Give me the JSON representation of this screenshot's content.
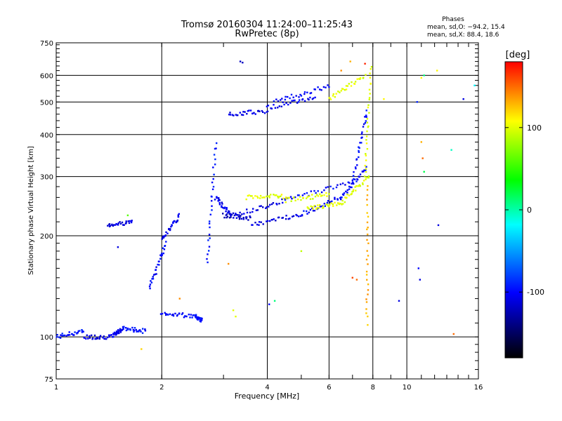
{
  "chart_data": {
    "type": "scatter",
    "title": "Tromsø 20160304 11:24:00–11:25:43",
    "subtitle": "RwPretec (8p)",
    "xlabel": "Frequency [MHz]",
    "ylabel": "Stationary phase Virtual Height [km]",
    "x_scale": "log",
    "y_scale": "log",
    "xlim": [
      1,
      16
    ],
    "ylim": [
      75,
      750
    ],
    "x_ticks": [
      1,
      2,
      4,
      6,
      8,
      10,
      16
    ],
    "y_ticks": [
      75,
      100,
      200,
      300,
      400,
      500,
      600,
      750
    ],
    "grid": true,
    "phase_info": {
      "heading": "Phases",
      "line1": "mean, sd,O: −94.2, 15.4",
      "line2": "mean, sd,X:  88.4, 18.6"
    },
    "colorbar": {
      "label": "[deg]",
      "ticks": [
        100,
        0,
        -100
      ],
      "range": [
        -180,
        180
      ]
    },
    "color_stops": [
      "#ff0000",
      "#ffff00",
      "#00ff00",
      "#00ffff",
      "#0000ff",
      "#000000"
    ],
    "traces": [
      {
        "x": [
          1.0,
          1.2
        ],
        "y": [
          100,
          104
        ],
        "phase": -95
      },
      {
        "x": [
          1.2,
          1.45
        ],
        "y": [
          100,
          100
        ],
        "phase": -110
      },
      {
        "x": [
          1.45,
          1.55
        ],
        "y": [
          101,
          106
        ],
        "phase": -105
      },
      {
        "x": [
          1.55,
          1.8
        ],
        "y": [
          106,
          104
        ],
        "phase": -95
      },
      {
        "x": [
          1.4,
          1.65
        ],
        "y": [
          215,
          220
        ],
        "phase": -110
      },
      {
        "x": [
          1.85,
          2.05
        ],
        "y": [
          140,
          190
        ],
        "phase": -100
      },
      {
        "x": [
          2.0,
          2.25
        ],
        "y": [
          195,
          230
        ],
        "phase": -105
      },
      {
        "x": [
          2.0,
          2.5
        ],
        "y": [
          118,
          115
        ],
        "phase": -100
      },
      {
        "x": [
          2.5,
          2.6
        ],
        "y": [
          115,
          112
        ],
        "phase": -95
      },
      {
        "x": [
          2.7,
          2.85
        ],
        "y": [
          165,
          380
        ],
        "phase": -95
      },
      {
        "x": [
          2.85,
          3.15
        ],
        "y": [
          260,
          230
        ],
        "phase": -105
      },
      {
        "x": [
          3.0,
          3.6
        ],
        "y": [
          230,
          225
        ],
        "phase": -120
      },
      {
        "x": [
          3.6,
          5.0
        ],
        "y": [
          215,
          232
        ],
        "phase": -110
      },
      {
        "x": [
          5.0,
          6.5
        ],
        "y": [
          232,
          260
        ],
        "phase": -100
      },
      {
        "x": [
          6.5,
          7.7
        ],
        "y": [
          260,
          320
        ],
        "phase": -100
      },
      {
        "x": [
          3.2,
          4.5
        ],
        "y": [
          230,
          255
        ],
        "phase": -110
      },
      {
        "x": [
          4.5,
          7.0
        ],
        "y": [
          255,
          290
        ],
        "phase": -100
      },
      {
        "x": [
          7.0,
          7.7
        ],
        "y": [
          290,
          470
        ],
        "phase": -100
      },
      {
        "x": [
          3.1,
          4.0
        ],
        "y": [
          460,
          470
        ],
        "phase": -110
      },
      {
        "x": [
          4.0,
          5.5
        ],
        "y": [
          480,
          520
        ],
        "phase": -105
      },
      {
        "x": [
          4.2,
          6.0
        ],
        "y": [
          500,
          560
        ],
        "phase": -100
      },
      {
        "x": [
          3.5,
          4.5
        ],
        "y": [
          260,
          262
        ],
        "phase": 100
      },
      {
        "x": [
          4.5,
          6.0
        ],
        "y": [
          255,
          265
        ],
        "phase": 100
      },
      {
        "x": [
          5.2,
          6.5
        ],
        "y": [
          240,
          250
        ],
        "phase": 100
      },
      {
        "x": [
          6.5,
          7.8
        ],
        "y": [
          250,
          300
        ],
        "phase": 100
      },
      {
        "x": [
          7.6,
          7.9
        ],
        "y": [
          300,
          640
        ],
        "phase": 100
      },
      {
        "x": [
          6.0,
          7.6
        ],
        "y": [
          510,
          600
        ],
        "phase": 100
      },
      {
        "x": [
          7.7,
          7.75
        ],
        "y": [
          110,
          280
        ],
        "phase": 130
      }
    ],
    "scatter": [
      {
        "x": 3.35,
        "y": 660,
        "phase": -120
      },
      {
        "x": 3.4,
        "y": 655,
        "phase": -120
      },
      {
        "x": 3.2,
        "y": 120,
        "phase": 100
      },
      {
        "x": 3.25,
        "y": 115,
        "phase": 100
      },
      {
        "x": 4.05,
        "y": 125,
        "phase": -100
      },
      {
        "x": 4.2,
        "y": 128,
        "phase": 10
      },
      {
        "x": 3.1,
        "y": 165,
        "phase": 140
      },
      {
        "x": 1.75,
        "y": 92,
        "phase": 120
      },
      {
        "x": 1.6,
        "y": 230,
        "phase": 60
      },
      {
        "x": 1.5,
        "y": 185,
        "phase": -110
      },
      {
        "x": 2.25,
        "y": 130,
        "phase": 140
      },
      {
        "x": 10.8,
        "y": 160,
        "phase": -100
      },
      {
        "x": 10.9,
        "y": 148,
        "phase": -110
      },
      {
        "x": 11.0,
        "y": 590,
        "phase": 110
      },
      {
        "x": 11.2,
        "y": 600,
        "phase": 10
      },
      {
        "x": 10.7,
        "y": 500,
        "phase": -90
      },
      {
        "x": 11.0,
        "y": 380,
        "phase": 130
      },
      {
        "x": 11.1,
        "y": 340,
        "phase": 150
      },
      {
        "x": 11.2,
        "y": 310,
        "phase": 20
      },
      {
        "x": 12.2,
        "y": 620,
        "phase": 110
      },
      {
        "x": 13.4,
        "y": 360,
        "phase": -5
      },
      {
        "x": 14.5,
        "y": 510,
        "phase": -110
      },
      {
        "x": 12.3,
        "y": 215,
        "phase": -110
      },
      {
        "x": 13.6,
        "y": 102,
        "phase": 150
      },
      {
        "x": 9.5,
        "y": 128,
        "phase": -110
      },
      {
        "x": 8.6,
        "y": 510,
        "phase": 110
      },
      {
        "x": 7.0,
        "y": 150,
        "phase": 160
      },
      {
        "x": 7.2,
        "y": 148,
        "phase": 150
      },
      {
        "x": 6.5,
        "y": 620,
        "phase": 140
      },
      {
        "x": 6.9,
        "y": 660,
        "phase": 130
      },
      {
        "x": 7.6,
        "y": 650,
        "phase": 170
      },
      {
        "x": 5.0,
        "y": 180,
        "phase": 90
      },
      {
        "x": 15.6,
        "y": 560,
        "phase": -20
      }
    ]
  }
}
